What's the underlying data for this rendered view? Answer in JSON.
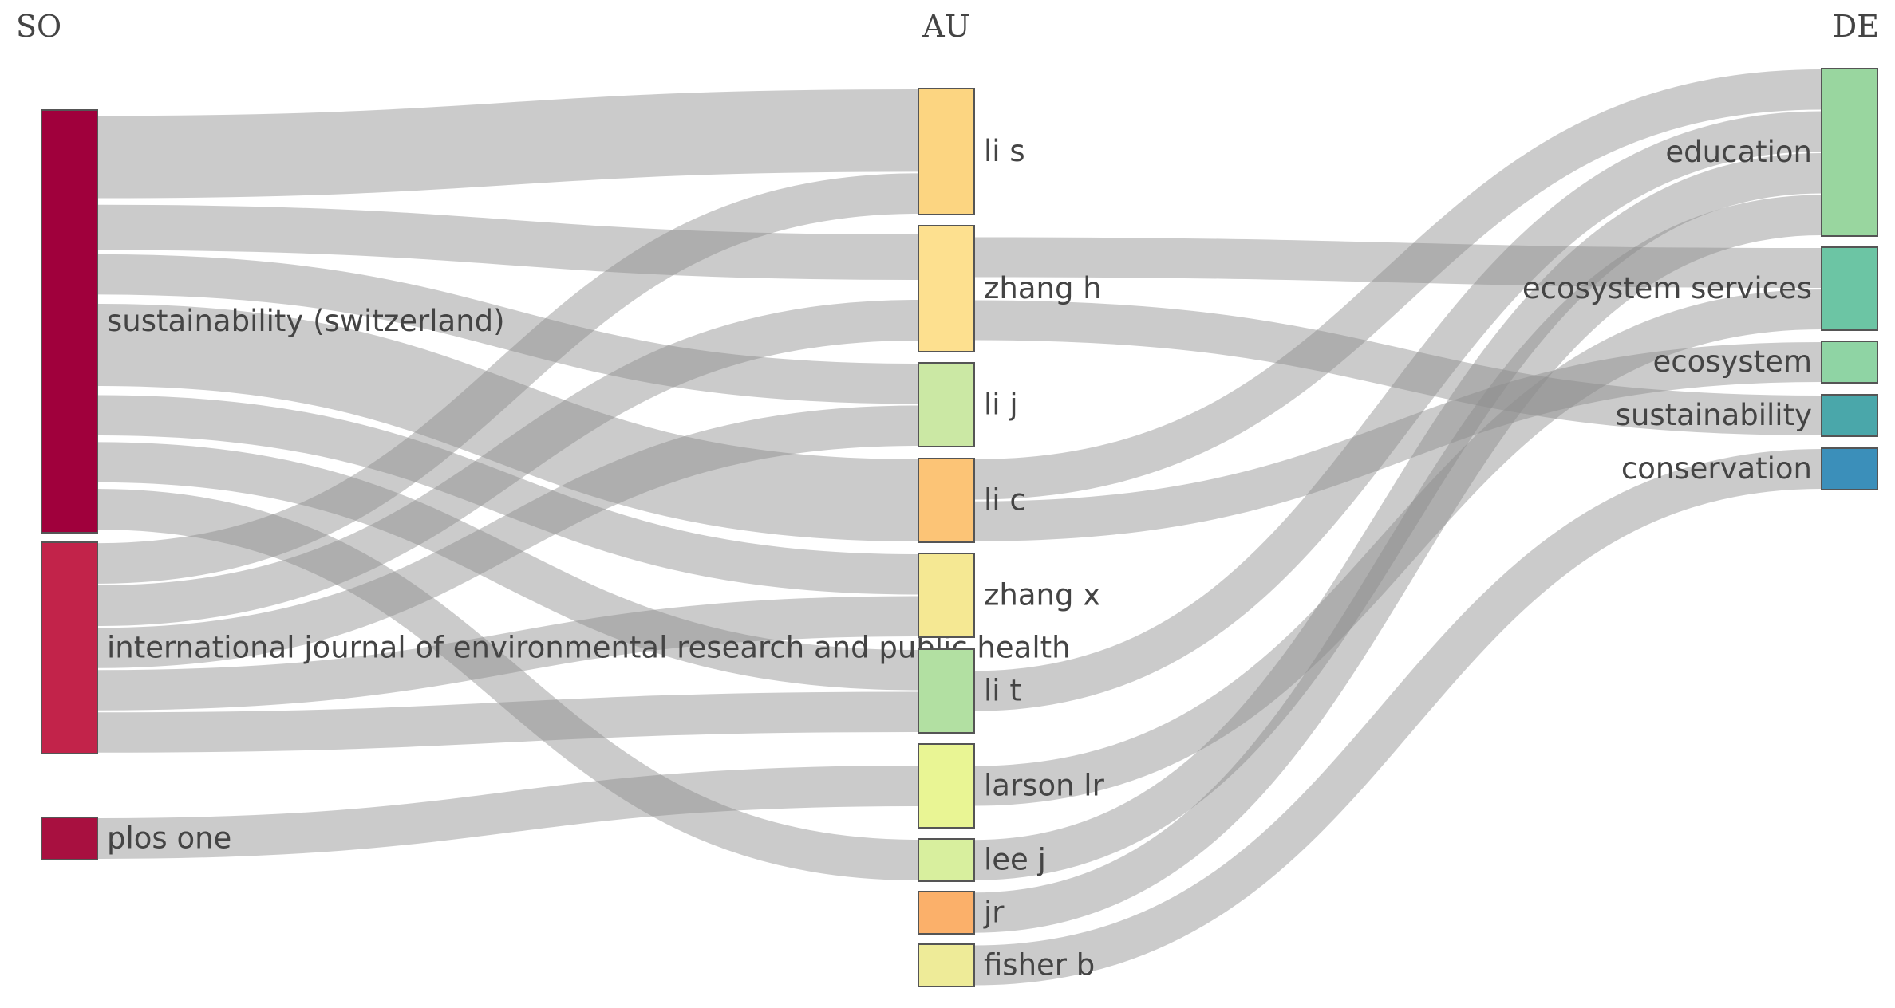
{
  "columns": [
    {
      "id": "SO",
      "title": "SO"
    },
    {
      "id": "AU",
      "title": "AU"
    },
    {
      "id": "DE",
      "title": "DE"
    }
  ],
  "nodes": [
    {
      "id": "so-sust",
      "column": "SO",
      "label": "sustainability (switzerland)",
      "color": "#a0003c"
    },
    {
      "id": "so-ijerph",
      "column": "SO",
      "label": "international journal of environmental research and public health",
      "color": "#c2234a"
    },
    {
      "id": "so-plos",
      "column": "SO",
      "label": "plos one",
      "color": "#a81040"
    },
    {
      "id": "au-lis",
      "column": "AU",
      "label": "li s",
      "color": "#fcd581"
    },
    {
      "id": "au-zhangh",
      "column": "AU",
      "label": "zhang h",
      "color": "#fde08f"
    },
    {
      "id": "au-lij",
      "column": "AU",
      "label": "li j",
      "color": "#cbe8a4"
    },
    {
      "id": "au-lic",
      "column": "AU",
      "label": "li c",
      "color": "#fcc476"
    },
    {
      "id": "au-zhangx",
      "column": "AU",
      "label": "zhang x",
      "color": "#f5e893"
    },
    {
      "id": "au-lit",
      "column": "AU",
      "label": "li t",
      "color": "#b2e0a2"
    },
    {
      "id": "au-larson",
      "column": "AU",
      "label": "larson lr",
      "color": "#e9f594"
    },
    {
      "id": "au-leej",
      "column": "AU",
      "label": "lee j",
      "color": "#d8ef9e"
    },
    {
      "id": "au-jr",
      "column": "AU",
      "label": "jr",
      "color": "#fbb06a"
    },
    {
      "id": "au-fisher",
      "column": "AU",
      "label": "fisher b",
      "color": "#eeeb98"
    },
    {
      "id": "de-education",
      "column": "DE",
      "label": "education",
      "color": "#99d69f"
    },
    {
      "id": "de-ecoserv",
      "column": "DE",
      "label": "ecosystem services",
      "color": "#6cc5a4"
    },
    {
      "id": "de-ecosystem",
      "column": "DE",
      "label": "ecosystem",
      "color": "#8fd4a4"
    },
    {
      "id": "de-sustain",
      "column": "DE",
      "label": "sustainability",
      "color": "#4aa7aa"
    },
    {
      "id": "de-conserv",
      "column": "DE",
      "label": "conservation",
      "color": "#3b8fba"
    }
  ],
  "links": [
    {
      "source": "so-sust",
      "target": "au-lis",
      "value": 2
    },
    {
      "source": "so-sust",
      "target": "au-zhangh",
      "value": 1
    },
    {
      "source": "so-sust",
      "target": "au-lij",
      "value": 1
    },
    {
      "source": "so-sust",
      "target": "au-lic",
      "value": 2
    },
    {
      "source": "so-sust",
      "target": "au-zhangx",
      "value": 1
    },
    {
      "source": "so-sust",
      "target": "au-lit",
      "value": 1
    },
    {
      "source": "so-sust",
      "target": "au-leej",
      "value": 1
    },
    {
      "source": "so-ijerph",
      "target": "au-lis",
      "value": 1
    },
    {
      "source": "so-ijerph",
      "target": "au-zhangh",
      "value": 1
    },
    {
      "source": "so-ijerph",
      "target": "au-lij",
      "value": 1
    },
    {
      "source": "so-ijerph",
      "target": "au-zhangx",
      "value": 1
    },
    {
      "source": "so-ijerph",
      "target": "au-lit",
      "value": 1
    },
    {
      "source": "so-plos",
      "target": "au-larson",
      "value": 1
    },
    {
      "source": "au-zhangh",
      "target": "de-ecoserv",
      "value": 1
    },
    {
      "source": "au-zhangh",
      "target": "de-sustain",
      "value": 1
    },
    {
      "source": "au-lic",
      "target": "de-education",
      "value": 1
    },
    {
      "source": "au-lic",
      "target": "de-ecosystem",
      "value": 1
    },
    {
      "source": "au-lit",
      "target": "de-education",
      "value": 1
    },
    {
      "source": "au-larson",
      "target": "de-ecoserv",
      "value": 1
    },
    {
      "source": "au-leej",
      "target": "de-education",
      "value": 1
    },
    {
      "source": "au-jr",
      "target": "de-education",
      "value": 1
    },
    {
      "source": "au-fisher",
      "target": "de-conserv",
      "value": 1
    }
  ]
}
